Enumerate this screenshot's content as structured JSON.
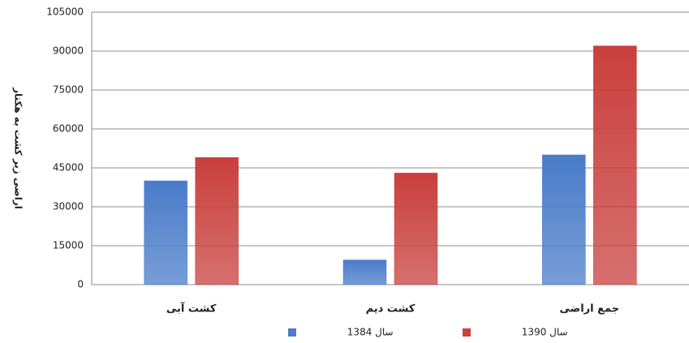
{
  "chart_data": {
    "type": "bar",
    "y_label": "اراضی زیر کشت به هکتار",
    "categories": [
      "کشت آبی",
      "کشت دیم",
      "جمع اراضی"
    ],
    "series": [
      {
        "name": "سال 1384",
        "color": "#4a7cc9",
        "values": [
          40000,
          9500,
          50000
        ]
      },
      {
        "name": "سال 1390",
        "color": "#c9403d",
        "values": [
          49000,
          43000,
          92000
        ]
      }
    ],
    "ylim": [
      0,
      105000
    ],
    "yticks": [
      0,
      15000,
      30000,
      45000,
      60000,
      75000,
      90000,
      105000
    ],
    "grid": true
  }
}
